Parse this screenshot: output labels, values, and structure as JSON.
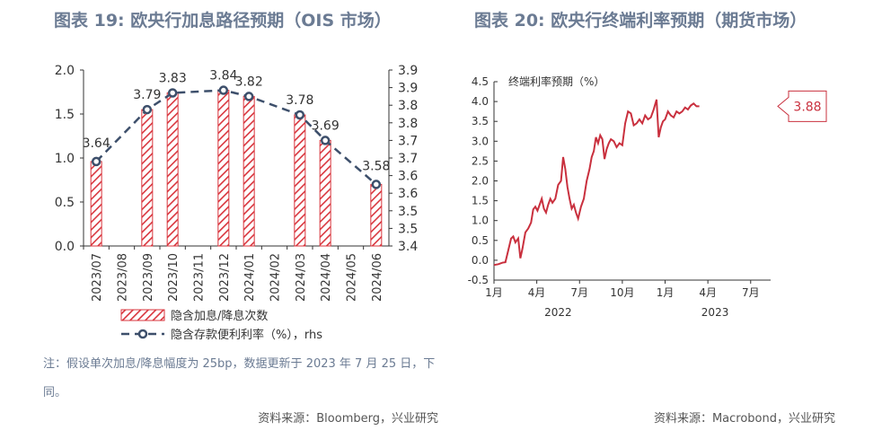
{
  "titles": {
    "left": "图表 19: 欧央行加息路径预期（OIS 市场）",
    "right": "图表 20: 欧央行终端利率预期（期货市场）"
  },
  "note": "注：假设单次加息/降息幅度为 25bp，数据更新于 2023 年 7 月 25 日，下同。",
  "sources": {
    "left": "资料来源：Bloomberg，兴业研究",
    "right": "资料来源：Macrobond，兴业研究"
  },
  "colors": {
    "bar": "#d9363e",
    "line": "#3d4f6b",
    "series": "#c9303e",
    "text_title": "#6b7b93"
  },
  "chart_data": [
    {
      "type": "bar",
      "categories": [
        "2023/07",
        "2023/08",
        "2023/09",
        "2023/10",
        "2023/11",
        "2023/12",
        "2024/01",
        "2024/02",
        "2024/03",
        "2024/04",
        "2024/05",
        "2024/06"
      ],
      "series": [
        {
          "name": "隐含加息/降息次数",
          "type": "bar",
          "axis": "left",
          "values": [
            0.96,
            0,
            1.55,
            1.74,
            0,
            1.77,
            1.7,
            0,
            1.49,
            1.2,
            0,
            0.7
          ]
        },
        {
          "name": "隐含存款便利利率（%），rhs",
          "type": "line",
          "axis": "right",
          "values": [
            3.64,
            null,
            3.79,
            3.83,
            null,
            3.84,
            3.82,
            null,
            3.78,
            3.69,
            null,
            3.58
          ],
          "labels": [
            "3.64",
            "",
            "3.79",
            "3.83",
            "",
            "3.84",
            "3.82",
            "",
            "3.78",
            "3.69",
            "",
            "3.58"
          ]
        }
      ],
      "y_left": {
        "min": 0,
        "max": 2,
        "ticks": [
          "0.0",
          "0.5",
          "1.0",
          "1.5",
          "2.0"
        ]
      },
      "y_right": {
        "min": 3.4,
        "max": 3.9,
        "ticks": [
          "3.4",
          "3.5",
          "3.5",
          "3.6",
          "3.6",
          "3.7",
          "3.7",
          "3.8",
          "3.8",
          "3.9",
          "3.9"
        ]
      },
      "legend_placement": "bottom"
    },
    {
      "type": "line",
      "title": "终端利率预期（%）",
      "ylim": [
        -0.5,
        4.5
      ],
      "y_ticks": [
        "-0.5",
        "0.0",
        "0.5",
        "1.0",
        "1.5",
        "2.0",
        "2.5",
        "3.0",
        "3.5",
        "4.0",
        "4.5"
      ],
      "x_ticks": [
        "1月",
        "4月",
        "7月",
        "10月",
        "1月",
        "4月",
        "7月"
      ],
      "x_tick_index": [
        0,
        3,
        6,
        9,
        12,
        15,
        18
      ],
      "year_labels": [
        "2022",
        "2023"
      ],
      "x_range_months": [
        0,
        19.4
      ],
      "points": [
        [
          0.0,
          -0.12
        ],
        [
          0.3,
          -0.1
        ],
        [
          0.6,
          -0.06
        ],
        [
          0.8,
          -0.05
        ],
        [
          1.0,
          0.25
        ],
        [
          1.2,
          0.55
        ],
        [
          1.35,
          0.6
        ],
        [
          1.5,
          0.45
        ],
        [
          1.7,
          0.55
        ],
        [
          1.85,
          0.05
        ],
        [
          2.0,
          0.3
        ],
        [
          2.2,
          0.7
        ],
        [
          2.4,
          0.8
        ],
        [
          2.6,
          0.95
        ],
        [
          2.75,
          1.28
        ],
        [
          2.9,
          1.35
        ],
        [
          3.05,
          1.25
        ],
        [
          3.2,
          1.4
        ],
        [
          3.35,
          1.55
        ],
        [
          3.5,
          1.3
        ],
        [
          3.65,
          1.2
        ],
        [
          3.8,
          1.4
        ],
        [
          3.95,
          1.55
        ],
        [
          4.1,
          1.45
        ],
        [
          4.3,
          1.55
        ],
        [
          4.5,
          1.9
        ],
        [
          4.7,
          2.0
        ],
        [
          4.85,
          2.6
        ],
        [
          5.0,
          2.3
        ],
        [
          5.15,
          1.85
        ],
        [
          5.3,
          1.55
        ],
        [
          5.45,
          1.3
        ],
        [
          5.6,
          1.4
        ],
        [
          5.75,
          1.2
        ],
        [
          5.9,
          1.05
        ],
        [
          6.1,
          1.35
        ],
        [
          6.3,
          1.55
        ],
        [
          6.5,
          2.0
        ],
        [
          6.7,
          2.3
        ],
        [
          6.85,
          2.6
        ],
        [
          7.0,
          2.75
        ],
        [
          7.15,
          3.1
        ],
        [
          7.3,
          2.95
        ],
        [
          7.45,
          3.15
        ],
        [
          7.6,
          3.05
        ],
        [
          7.75,
          2.55
        ],
        [
          7.9,
          2.8
        ],
        [
          8.05,
          2.95
        ],
        [
          8.2,
          3.05
        ],
        [
          8.4,
          3.0
        ],
        [
          8.6,
          2.85
        ],
        [
          8.8,
          2.95
        ],
        [
          9.0,
          2.9
        ],
        [
          9.2,
          3.45
        ],
        [
          9.4,
          3.75
        ],
        [
          9.6,
          3.7
        ],
        [
          9.8,
          3.4
        ],
        [
          10.0,
          3.45
        ],
        [
          10.2,
          3.55
        ],
        [
          10.4,
          3.45
        ],
        [
          10.6,
          3.65
        ],
        [
          10.8,
          3.55
        ],
        [
          11.0,
          3.6
        ],
        [
          11.2,
          3.8
        ],
        [
          11.4,
          4.05
        ],
        [
          11.55,
          3.1
        ],
        [
          11.7,
          3.35
        ],
        [
          11.85,
          3.5
        ],
        [
          12.0,
          3.55
        ],
        [
          12.2,
          3.75
        ],
        [
          12.4,
          3.65
        ],
        [
          12.6,
          3.6
        ],
        [
          12.8,
          3.75
        ],
        [
          13.0,
          3.7
        ],
        [
          13.2,
          3.75
        ],
        [
          13.4,
          3.85
        ],
        [
          13.6,
          3.8
        ],
        [
          13.8,
          3.9
        ],
        [
          14.0,
          3.95
        ],
        [
          14.2,
          3.88
        ],
        [
          14.4,
          3.88
        ]
      ],
      "last_value_label": "3.88"
    }
  ]
}
